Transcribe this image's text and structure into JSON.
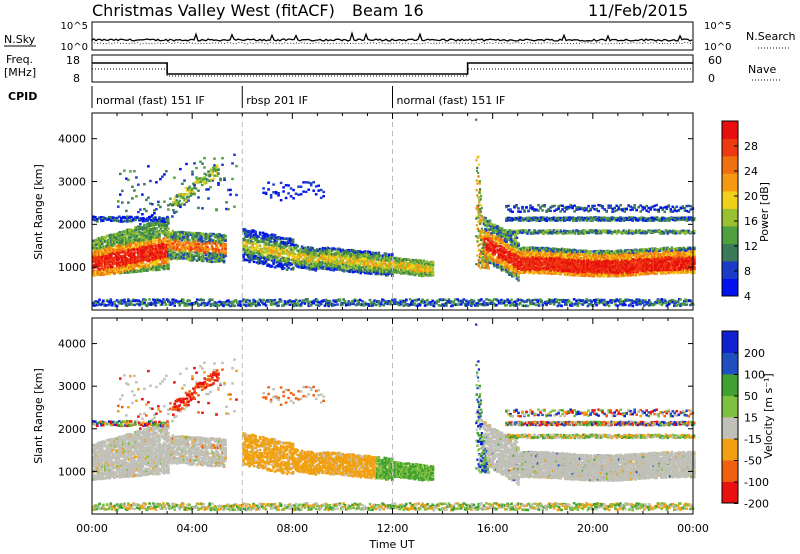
{
  "header": {
    "title": "Christmas Valley West (fitACF)",
    "beam": "Beam 16",
    "date": "11/Feb/2015"
  },
  "nsky_panel": {
    "left_label": "N.Sky",
    "right_label": "N.Search",
    "left_ticks": [
      "10^5",
      "10^0"
    ],
    "right_ticks": [
      "10^5",
      "10^0"
    ]
  },
  "freq_panel": {
    "left_label_1": "Freq.",
    "left_label_2": "[MHz]",
    "right_label": "Nave",
    "left_ticks": [
      "18",
      "8"
    ],
    "right_ticks": [
      "60",
      "0"
    ]
  },
  "cpid": {
    "label": "CPID",
    "modes": [
      {
        "text": "normal (fast) 151 IF",
        "start_hour": 0
      },
      {
        "text": "rbsp 201 IF",
        "start_hour": 6
      },
      {
        "text": "normal (fast) 151 IF",
        "start_hour": 12
      }
    ]
  },
  "colors": {
    "power_scale": [
      "#0010ee",
      "#1a3cc8",
      "#3a7a58",
      "#50a040",
      "#98c030",
      "#f0d018",
      "#f59a10",
      "#f07010",
      "#ee3a10",
      "#e80e0e"
    ],
    "velocity_scale": [
      "#e81010",
      "#f06010",
      "#f0a010",
      "#c0c0b8",
      "#80c040",
      "#40a030",
      "#2050c0",
      "#1020d0"
    ]
  },
  "chart_data": [
    {
      "type": "heatmap",
      "name_axis": "power",
      "xlabel": "",
      "ylabel": "Slant Range [km]",
      "x_range_hours": [
        0,
        24
      ],
      "ylim": [
        0,
        4600
      ],
      "yticks": [
        1000,
        2000,
        3000,
        4000
      ],
      "ytick_labels": [
        "1000",
        "2000",
        "3000",
        "4000"
      ],
      "colorbar": {
        "label": "Power [dB]",
        "tick_labels": [
          "28",
          "24",
          "20",
          "16",
          "12",
          "8",
          "4"
        ],
        "range": [
          0,
          30
        ]
      }
    },
    {
      "type": "heatmap",
      "name_axis": "velocity",
      "xlabel": "Time UT",
      "ylabel": "Slant Range [km]",
      "x_range_hours": [
        0,
        24
      ],
      "ylim": [
        0,
        4600
      ],
      "yticks": [
        1000,
        2000,
        3000,
        4000
      ],
      "ytick_labels": [
        "1000",
        "2000",
        "3000",
        "4000"
      ],
      "xtick_labels": [
        "00:00",
        "04:00",
        "08:00",
        "12:00",
        "16:00",
        "20:00",
        "00:00"
      ],
      "colorbar": {
        "label": "Velocity [m s⁻¹]",
        "tick_labels": [
          "200",
          "100",
          "50",
          "15",
          "-15",
          "-50",
          "-100",
          "-200"
        ]
      }
    }
  ]
}
